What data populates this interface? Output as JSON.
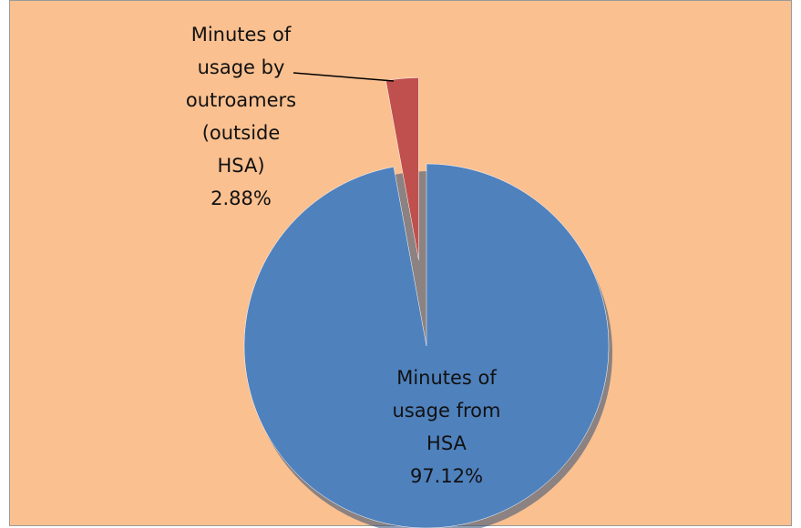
{
  "chart_data": {
    "type": "pie",
    "categories": [
      "Minutes of usage from HSA",
      "Minutes of usage by outroamers (outside HSA)"
    ],
    "values": [
      97.12,
      2.88
    ],
    "value_labels": [
      "97.12%",
      "2.88%"
    ],
    "colors": [
      "#4f81bd",
      "#c0504d"
    ]
  }
}
